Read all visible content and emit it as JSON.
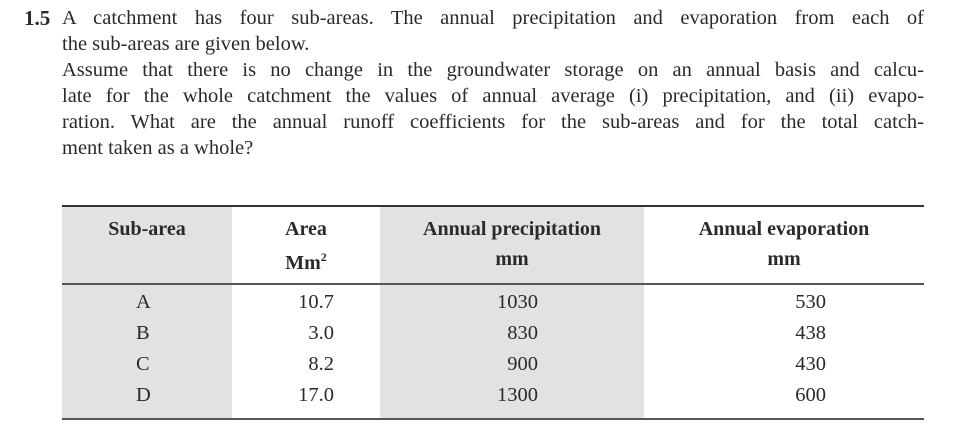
{
  "problem": {
    "number": "1.5",
    "lines": [
      "A catchment has four sub-areas. The annual precipitation and evaporation from each of",
      "the sub-areas are given below.",
      "Assume that there is no change in the groundwater storage on an annual basis and calcu-",
      "late for the whole catchment the values of annual average (i) precipitation, and (ii) evapo-",
      "ration. What are the annual runoff coefficients for the sub-areas and for the total catch-",
      "ment taken as a whole?"
    ]
  },
  "table": {
    "headers": {
      "subarea": "Sub-area",
      "area_line1": "Area",
      "area_unit": "Mm",
      "area_exp": "2",
      "precip_line1": "Annual precipitation",
      "precip_unit": "mm",
      "evap_line1": "Annual evaporation",
      "evap_unit": "mm"
    },
    "rows": [
      {
        "subarea": "A",
        "area": "10.7",
        "precip": "1030",
        "evap": "530"
      },
      {
        "subarea": "B",
        "area": "3.0",
        "precip": "830",
        "evap": "438"
      },
      {
        "subarea": "C",
        "area": "8.2",
        "precip": "900",
        "evap": "430"
      },
      {
        "subarea": "D",
        "area": "17.0",
        "precip": "1300",
        "evap": "600"
      }
    ]
  }
}
